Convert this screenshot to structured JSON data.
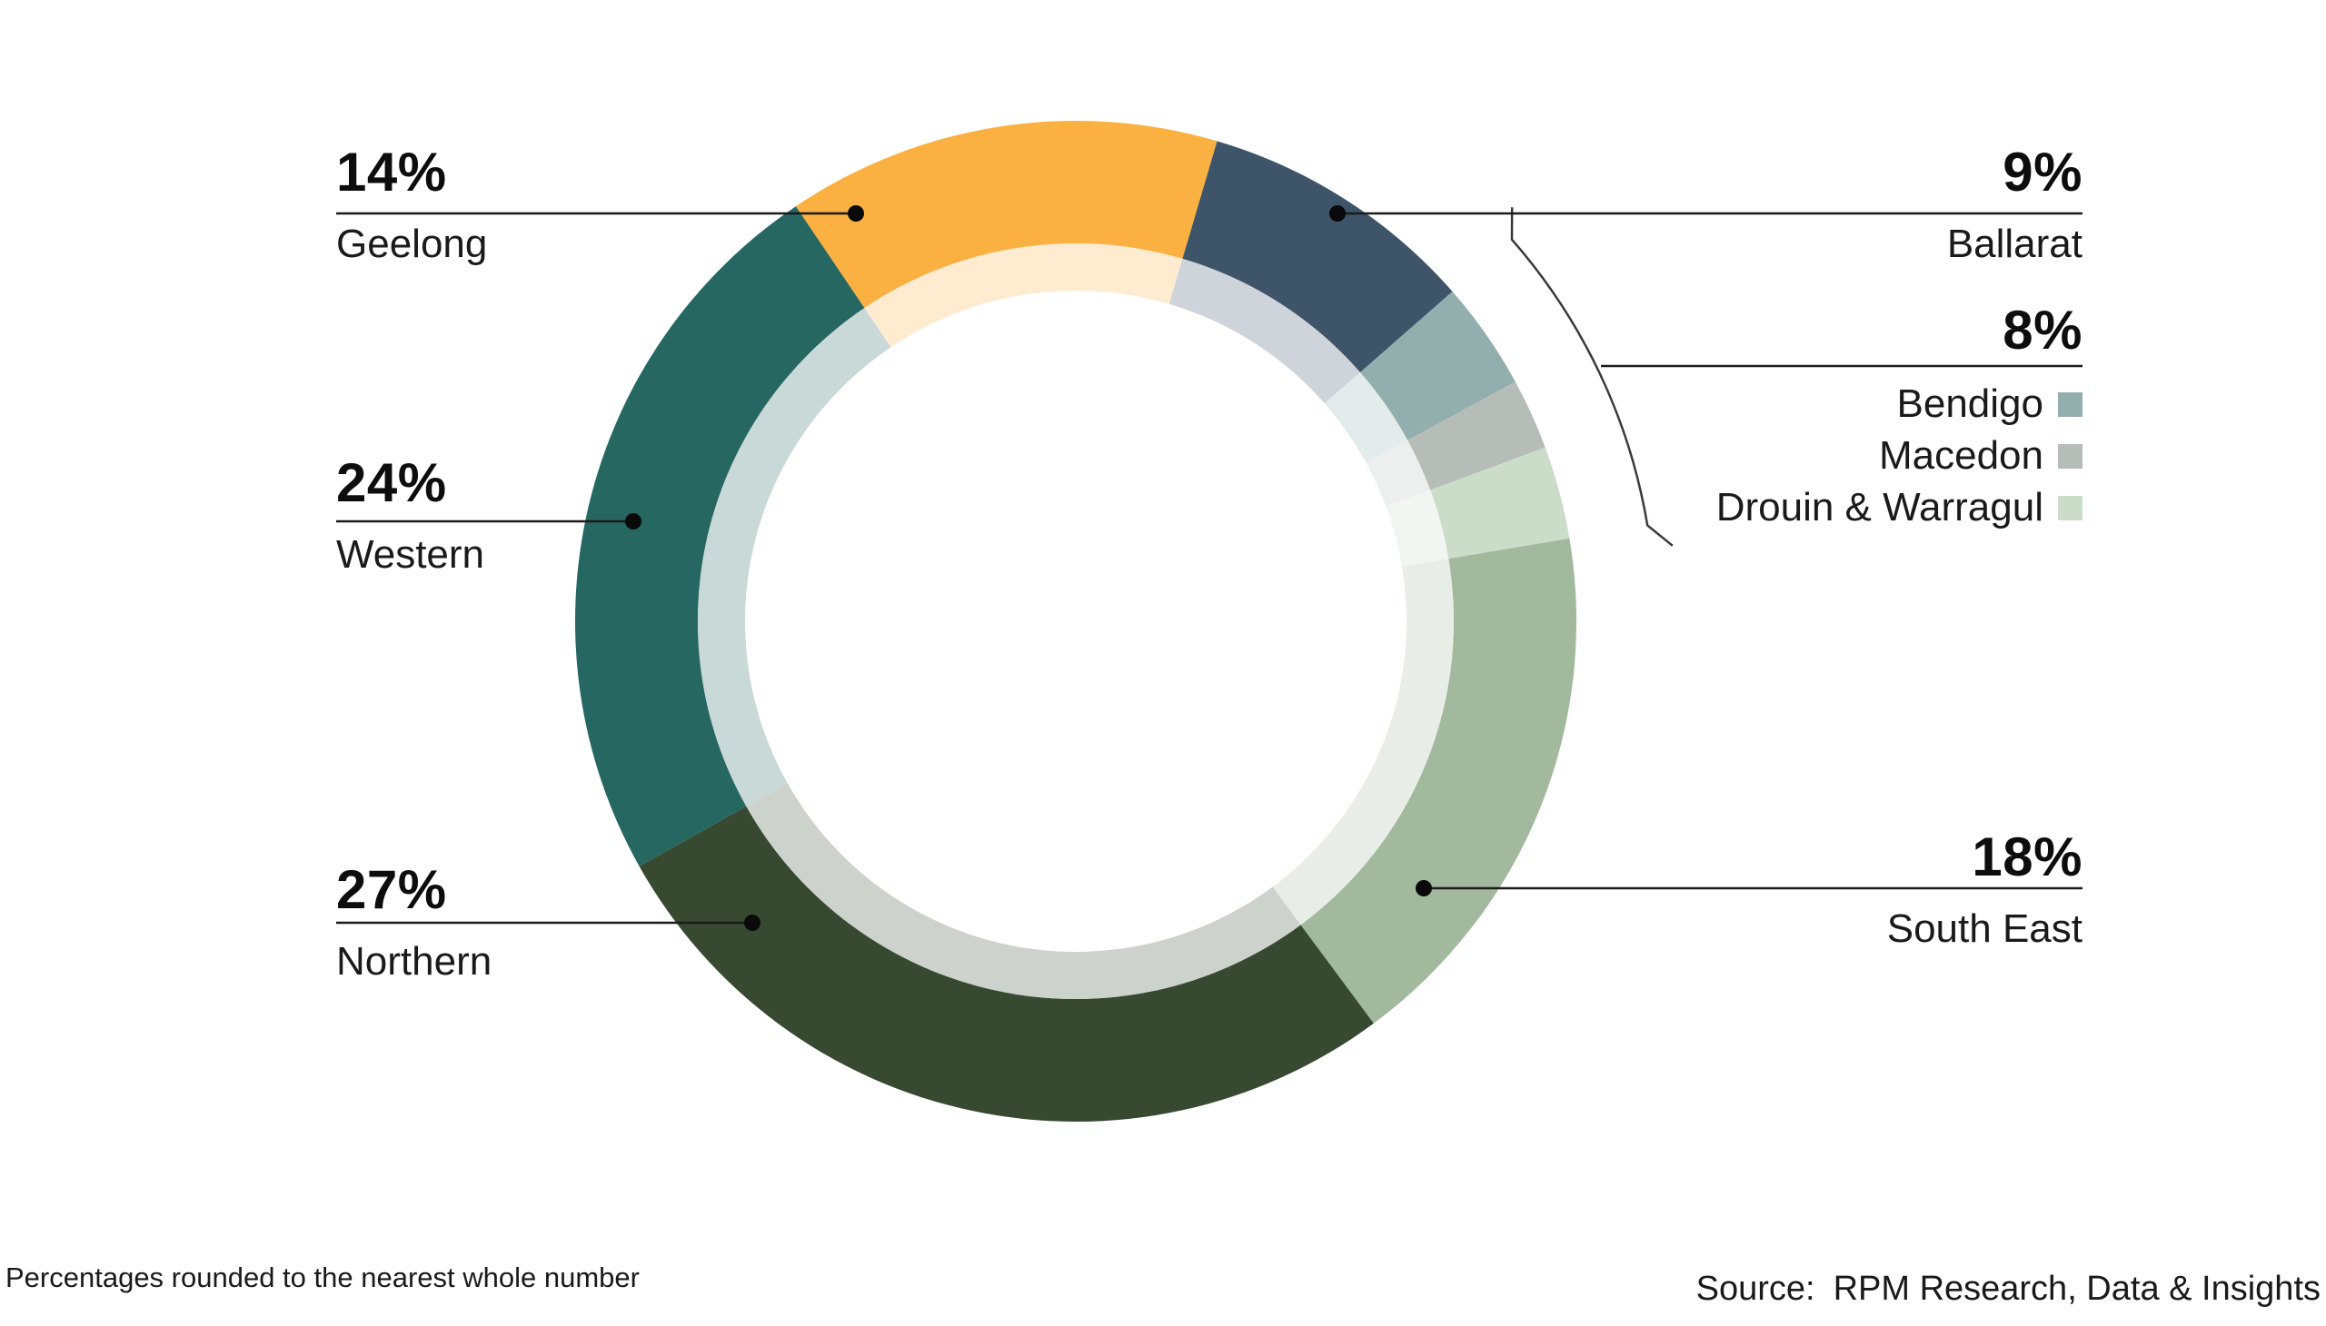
{
  "chart_data": {
    "type": "donut",
    "title": "",
    "start_angle_deg": -34,
    "inner_ring_tint": 0.75,
    "segments": [
      {
        "label": "Geelong",
        "pct": 14,
        "span": 14.0,
        "color": "#FBB042"
      },
      {
        "label": "Ballarat",
        "pct": 9,
        "span": 9.0,
        "color": "#3E5469"
      },
      {
        "label": "Bendigo",
        "pct": 3,
        "span": 3.5,
        "color": "#92AFAD",
        "group": "8%"
      },
      {
        "label": "Macedon",
        "pct": 2,
        "span": 2.3,
        "color": "#B6BDB9",
        "group": "8%"
      },
      {
        "label": "Drouin & Warragul",
        "pct": 3,
        "span": 3.0,
        "color": "#CBDCC9",
        "group": "8%"
      },
      {
        "label": "South East",
        "pct": 18,
        "span": 17.5,
        "color": "#A3B99D"
      },
      {
        "label": "Northern",
        "pct": 27,
        "span": 27.0,
        "color": "#374931"
      },
      {
        "label": "Western",
        "pct": 24,
        "span": 23.7,
        "color": "#266762"
      }
    ],
    "group_total_label": "8%",
    "legend_position": "right"
  },
  "callouts": {
    "geelong": {
      "value": "14%",
      "name": "Geelong"
    },
    "ballarat": {
      "value": "9%",
      "name": "Ballarat"
    },
    "group": {
      "value": "8%"
    },
    "western": {
      "value": "24%",
      "name": "Western"
    },
    "south_east": {
      "value": "18%",
      "name": "South East"
    },
    "northern": {
      "value": "27%",
      "name": "Northern"
    }
  },
  "legend": {
    "items": [
      {
        "name": "Bendigo",
        "color": "#92AFAD"
      },
      {
        "name": "Macedon",
        "color": "#B6BDB9"
      },
      {
        "name": "Drouin & Warragul",
        "color": "#CBDCC9"
      }
    ]
  },
  "footnote": "Percentages rounded to the nearest whole number",
  "source": {
    "label": "Source:",
    "text": "RPM Research, Data & Insights"
  },
  "colors": {
    "leader_line": "#1a1a1a",
    "dot": "#0a0a0a",
    "bracket": "#3a3a3a",
    "background": "#ffffff"
  }
}
